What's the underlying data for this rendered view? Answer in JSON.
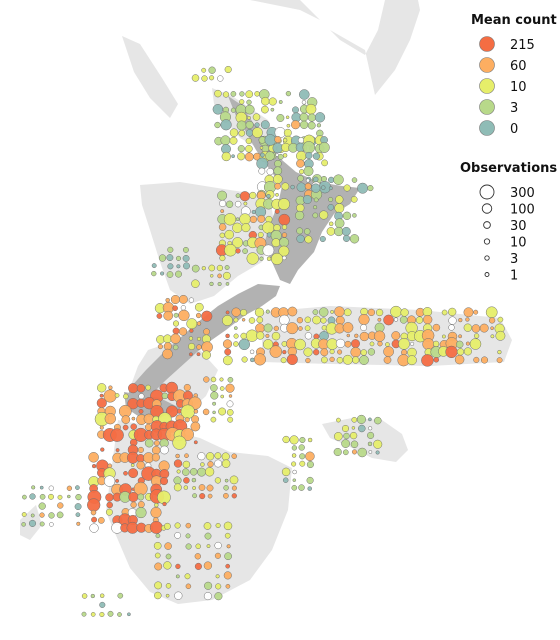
{
  "legend": {
    "colour_title": "Mean count",
    "colour_items": [
      {
        "label": "215",
        "color": "#f46d43"
      },
      {
        "label": "60",
        "color": "#fdae61"
      },
      {
        "label": "10",
        "color": "#e6ee6a"
      },
      {
        "label": "3",
        "color": "#b8d98a"
      },
      {
        "label": "0",
        "color": "#8fbcb6"
      }
    ],
    "size_title": "Observations",
    "size_items": [
      {
        "label": "300",
        "value": 300
      },
      {
        "label": "100",
        "value": 100
      },
      {
        "label": "30",
        "value": 30
      },
      {
        "label": "10",
        "value": 10
      },
      {
        "label": "3",
        "value": 3
      },
      {
        "label": "1",
        "value": 1
      }
    ]
  },
  "colors": {
    "land_main": "#b2b2b2",
    "land_context": "#e6e6e6",
    "background": "#ffffff"
  }
}
